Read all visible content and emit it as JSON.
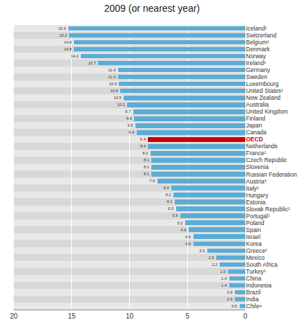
{
  "chart_data": {
    "type": "bar",
    "orientation": "horizontal",
    "title": "2009 (or nearest year)",
    "categories": [
      "Iceland¹",
      "Switzerland",
      "Belgium²",
      "Denmark",
      "Norway",
      "Ireland¹",
      "Germany",
      "Sweden",
      "Luxembourg",
      "United States¹",
      "New Zealand",
      "Australia",
      "United Kingdom",
      "Finland",
      "Japan",
      "Canada",
      "OECD",
      "Netherlands",
      "France¹",
      "Czech Republic",
      "Slovenia",
      "Russian Federation",
      "Austria³",
      "Italy²",
      "Hungary",
      "Estonia",
      "Slovak Republic¹",
      "Portugal¹",
      "Poland",
      "Spain",
      "Israel",
      "Korea",
      "Greece¹",
      "Mexico",
      "South Africa",
      "Turkey¹",
      "China",
      "Indonesia",
      "Brazil",
      "India",
      "Chile⁴"
    ],
    "values": [
      15.3,
      15.2,
      14.8,
      14.8,
      14.2,
      12.7,
      11.0,
      11.0,
      10.9,
      10.8,
      10.5,
      10.2,
      9.7,
      9.6,
      9.5,
      9.4,
      8.4,
      8.4,
      8.2,
      8.1,
      8.1,
      8.1,
      7.6,
      6.4,
      6.2,
      6.1,
      6.0,
      5.6,
      5.2,
      4.9,
      4.5,
      4.5,
      3.3,
      2.5,
      2.2,
      1.5,
      1.4,
      1.4,
      0.9,
      0.9,
      0.5
    ],
    "value_labels": [
      "15.3",
      "15.2",
      "14.8",
      "14.8",
      "14.2",
      "12.7",
      "11.0",
      "11.0",
      "10.9",
      "10.8",
      "10.5",
      "10.2",
      "9.7",
      "9.6",
      "9.5",
      "9.4",
      "8.4",
      "8.4",
      "8.2",
      "8.1",
      "8.1",
      "8.1",
      "7.6",
      "6.4",
      "6.2",
      "6.1",
      "6.0",
      "5.6",
      "5.2",
      "4.9",
      "4.5",
      "4.5",
      "3.3",
      "2.5",
      "2.2",
      "1.5",
      "1.4",
      "1.4",
      "0.9",
      "0.9",
      "0.5"
    ],
    "colors": [
      "#5bacd6",
      "#5bacd6",
      "#5bacd6",
      "#5bacd6",
      "#5bacd6",
      "#5bacd6",
      "#5bacd6",
      "#5bacd6",
      "#5bacd6",
      "#5bacd6",
      "#5bacd6",
      "#5bacd6",
      "#5bacd6",
      "#5bacd6",
      "#5bacd6",
      "#5bacd6",
      "#cc0000",
      "#5bacd6",
      "#5bacd6",
      "#5bacd6",
      "#5bacd6",
      "#5bacd6",
      "#5bacd6",
      "#5bacd6",
      "#5bacd6",
      "#5bacd6",
      "#5bacd6",
      "#5bacd6",
      "#5bacd6",
      "#5bacd6",
      "#5bacd6",
      "#5bacd6",
      "#5bacd6",
      "#5bacd6",
      "#5bacd6",
      "#5bacd6",
      "#5bacd6",
      "#5bacd6",
      "#5bacd6",
      "#5bacd6",
      "#5bacd6"
    ],
    "xlim": [
      20,
      0
    ],
    "xticks": [
      20,
      15,
      10,
      5,
      0
    ],
    "grid": true,
    "data_labels": true
  }
}
